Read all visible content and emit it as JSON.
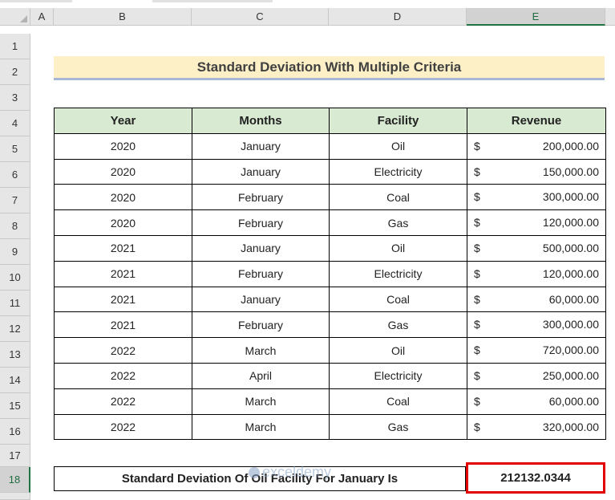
{
  "columns": [
    "A",
    "B",
    "C",
    "D",
    "E"
  ],
  "rows": [
    "1",
    "2",
    "3",
    "4",
    "5",
    "6",
    "7",
    "8",
    "9",
    "10",
    "11",
    "12",
    "13",
    "14",
    "15",
    "16",
    "17",
    "18"
  ],
  "title": "Standard Deviation With Multiple Criteria",
  "table": {
    "headers": [
      "Year",
      "Months",
      "Facility",
      "Revenue"
    ],
    "rows": [
      {
        "year": "2020",
        "month": "January",
        "facility": "Oil",
        "cur": "$",
        "amount": "200,000.00"
      },
      {
        "year": "2020",
        "month": "January",
        "facility": "Electricity",
        "cur": "$",
        "amount": "150,000.00"
      },
      {
        "year": "2020",
        "month": "February",
        "facility": "Coal",
        "cur": "$",
        "amount": "300,000.00"
      },
      {
        "year": "2020",
        "month": "February",
        "facility": "Gas",
        "cur": "$",
        "amount": "120,000.00"
      },
      {
        "year": "2021",
        "month": "January",
        "facility": "Oil",
        "cur": "$",
        "amount": "500,000.00"
      },
      {
        "year": "2021",
        "month": "February",
        "facility": "Electricity",
        "cur": "$",
        "amount": "120,000.00"
      },
      {
        "year": "2021",
        "month": "January",
        "facility": "Coal",
        "cur": "$",
        "amount": "60,000.00"
      },
      {
        "year": "2021",
        "month": "February",
        "facility": "Gas",
        "cur": "$",
        "amount": "300,000.00"
      },
      {
        "year": "2022",
        "month": "March",
        "facility": "Oil",
        "cur": "$",
        "amount": "720,000.00"
      },
      {
        "year": "2022",
        "month": "April",
        "facility": "Electricity",
        "cur": "$",
        "amount": "250,000.00"
      },
      {
        "year": "2022",
        "month": "March",
        "facility": "Coal",
        "cur": "$",
        "amount": "60,000.00"
      },
      {
        "year": "2022",
        "month": "March",
        "facility": "Gas",
        "cur": "$",
        "amount": "320,000.00"
      }
    ]
  },
  "result": {
    "label": "Standard Deviation Of Oil Facility For January Is",
    "value": "212132.0344"
  },
  "watermark": "exceldemy",
  "selected_column": "E",
  "selected_row": "18",
  "colors": {
    "header_fill": "#d8ead2",
    "title_fill": "#fdf0c7",
    "highlight": "#e00000",
    "selection": "#217346"
  }
}
